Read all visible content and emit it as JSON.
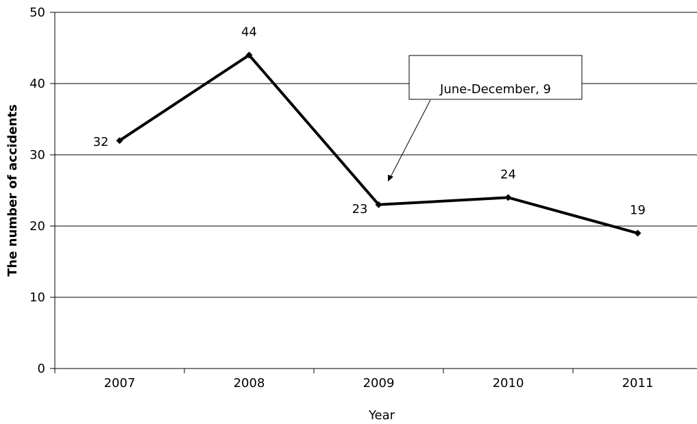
{
  "chart_data": {
    "type": "line",
    "title": "",
    "xlabel": "Year",
    "ylabel": "The number of accidents",
    "ylim": [
      0,
      50
    ],
    "yticks": [
      "0",
      "10",
      "20",
      "30",
      "40",
      "50"
    ],
    "grid": true,
    "legend": "none",
    "categories": [
      "2007",
      "2008",
      "2009",
      "2010",
      "2011"
    ],
    "series": [
      {
        "values": [
          32,
          44,
          23,
          24,
          19
        ],
        "data_labels": [
          "32",
          "44",
          "23",
          "24",
          "19"
        ],
        "color": "#000000",
        "marker": "diamond"
      }
    ],
    "annotations": [
      {
        "text": "June-December, 9",
        "points_to": "2009"
      }
    ]
  }
}
